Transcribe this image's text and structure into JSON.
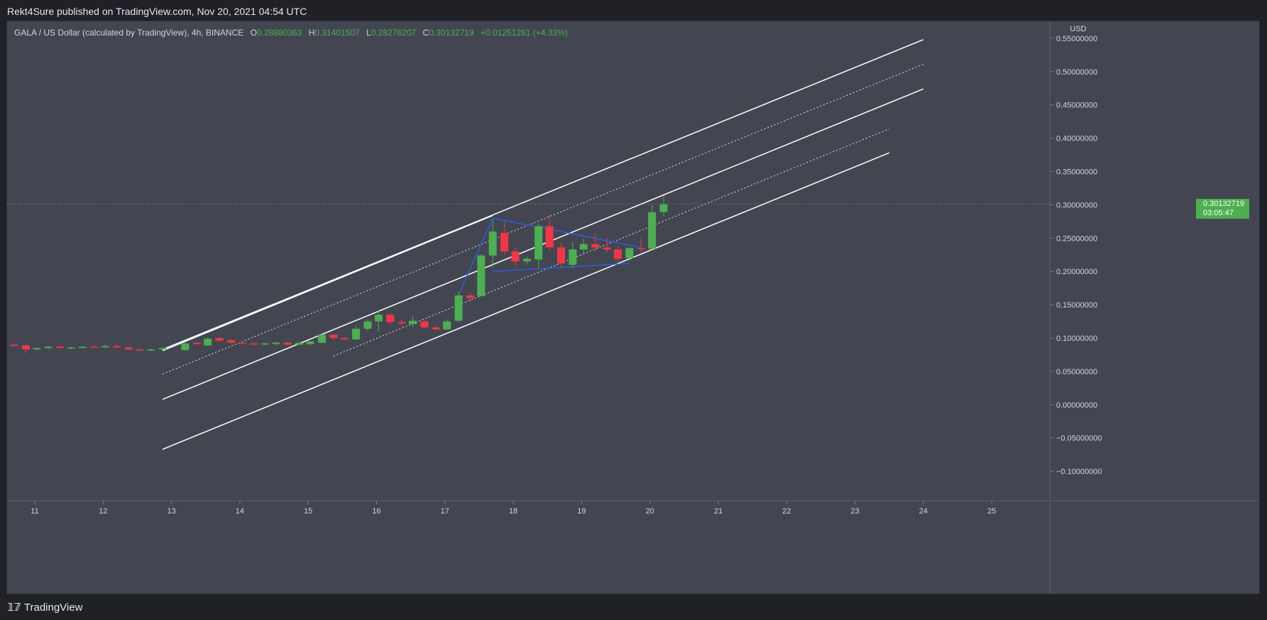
{
  "header": {
    "published": "Rekt4Sure published on TradingView.com, Nov 20, 2021 04:54 UTC"
  },
  "legend": {
    "title": "GALA / US Dollar (calculated by TradingView), 4h, BINANCE",
    "o_label": "O",
    "o_value": "0.28880363",
    "h_label": "H",
    "h_value": "0.31401507",
    "l_label": "L",
    "l_value": "0.28276207",
    "c_label": "C",
    "c_value": "0.30132719",
    "change": "+0.01251261 (+4.33%)"
  },
  "price_tag": {
    "price": "0.30132719",
    "countdown": "03:05:47"
  },
  "footer": {
    "brand": "TradingView"
  },
  "colors": {
    "background": "#434651",
    "up": "#4caf50",
    "down": "#f23645",
    "channel": "#ffffff",
    "triangle": "#2962ff",
    "price_line": "#4caf50"
  },
  "chart_data": {
    "type": "candlestick",
    "symbol": "GALA/USD",
    "interval": "4h",
    "currency_label": "USD",
    "y_ticks": [
      "0.55000000",
      "0.50000000",
      "0.45000000",
      "0.40000000",
      "0.35000000",
      "0.30000000",
      "0.25000000",
      "0.20000000",
      "0.15000000",
      "0.10000000",
      "0.05000000",
      "0.00000000",
      "−0.05000000",
      "−0.10000000"
    ],
    "y_tick_values": [
      0.55,
      0.5,
      0.45,
      0.4,
      0.35,
      0.3,
      0.25,
      0.2,
      0.15,
      0.1,
      0.05,
      0.0,
      -0.05,
      -0.1
    ],
    "x_ticks": [
      "11",
      "12",
      "13",
      "14",
      "15",
      "16",
      "17",
      "18",
      "19",
      "20",
      "21",
      "22",
      "23",
      "24",
      "25"
    ],
    "x_tick_values": [
      11,
      12,
      13,
      14,
      15,
      16,
      17,
      18,
      19,
      20,
      21,
      22,
      23,
      24,
      25
    ],
    "last_price": 0.30132719,
    "candles": [
      {
        "t": 10.7,
        "o": 0.09,
        "h": 0.093,
        "l": 0.087,
        "c": 0.088
      },
      {
        "t": 10.87,
        "o": 0.089,
        "h": 0.091,
        "l": 0.077,
        "c": 0.083
      },
      {
        "t": 11.03,
        "o": 0.083,
        "h": 0.086,
        "l": 0.081,
        "c": 0.085
      },
      {
        "t": 11.2,
        "o": 0.085,
        "h": 0.088,
        "l": 0.083,
        "c": 0.087
      },
      {
        "t": 11.37,
        "o": 0.087,
        "h": 0.089,
        "l": 0.084,
        "c": 0.085
      },
      {
        "t": 11.53,
        "o": 0.085,
        "h": 0.087,
        "l": 0.083,
        "c": 0.086
      },
      {
        "t": 11.7,
        "o": 0.086,
        "h": 0.088,
        "l": 0.084,
        "c": 0.087
      },
      {
        "t": 11.87,
        "o": 0.087,
        "h": 0.089,
        "l": 0.085,
        "c": 0.086
      },
      {
        "t": 12.03,
        "o": 0.086,
        "h": 0.09,
        "l": 0.085,
        "c": 0.088
      },
      {
        "t": 12.2,
        "o": 0.088,
        "h": 0.09,
        "l": 0.085,
        "c": 0.086
      },
      {
        "t": 12.37,
        "o": 0.086,
        "h": 0.087,
        "l": 0.082,
        "c": 0.083
      },
      {
        "t": 12.53,
        "o": 0.083,
        "h": 0.085,
        "l": 0.081,
        "c": 0.082
      },
      {
        "t": 12.7,
        "o": 0.082,
        "h": 0.084,
        "l": 0.08,
        "c": 0.083
      },
      {
        "t": 12.87,
        "o": 0.083,
        "h": 0.087,
        "l": 0.082,
        "c": 0.085
      },
      {
        "t": 13.2,
        "o": 0.082,
        "h": 0.093,
        "l": 0.081,
        "c": 0.092
      },
      {
        "t": 13.37,
        "o": 0.093,
        "h": 0.094,
        "l": 0.09,
        "c": 0.091
      },
      {
        "t": 13.53,
        "o": 0.089,
        "h": 0.101,
        "l": 0.088,
        "c": 0.099
      },
      {
        "t": 13.7,
        "o": 0.1,
        "h": 0.102,
        "l": 0.095,
        "c": 0.096
      },
      {
        "t": 13.87,
        "o": 0.097,
        "h": 0.098,
        "l": 0.091,
        "c": 0.093
      },
      {
        "t": 14.03,
        "o": 0.093,
        "h": 0.095,
        "l": 0.09,
        "c": 0.092
      },
      {
        "t": 14.2,
        "o": 0.092,
        "h": 0.094,
        "l": 0.089,
        "c": 0.091
      },
      {
        "t": 14.37,
        "o": 0.091,
        "h": 0.093,
        "l": 0.089,
        "c": 0.092
      },
      {
        "t": 14.53,
        "o": 0.091,
        "h": 0.094,
        "l": 0.089,
        "c": 0.093
      },
      {
        "t": 14.7,
        "o": 0.093,
        "h": 0.095,
        "l": 0.089,
        "c": 0.09
      },
      {
        "t": 14.87,
        "o": 0.09,
        "h": 0.094,
        "l": 0.089,
        "c": 0.093
      },
      {
        "t": 15.03,
        "o": 0.091,
        "h": 0.096,
        "l": 0.089,
        "c": 0.095
      },
      {
        "t": 15.2,
        "o": 0.093,
        "h": 0.107,
        "l": 0.092,
        "c": 0.105
      },
      {
        "t": 15.37,
        "o": 0.105,
        "h": 0.107,
        "l": 0.097,
        "c": 0.1
      },
      {
        "t": 15.53,
        "o": 0.1,
        "h": 0.102,
        "l": 0.097,
        "c": 0.098
      },
      {
        "t": 15.7,
        "o": 0.098,
        "h": 0.118,
        "l": 0.097,
        "c": 0.114
      },
      {
        "t": 15.87,
        "o": 0.114,
        "h": 0.128,
        "l": 0.11,
        "c": 0.125
      },
      {
        "t": 16.03,
        "o": 0.125,
        "h": 0.142,
        "l": 0.11,
        "c": 0.135
      },
      {
        "t": 16.2,
        "o": 0.135,
        "h": 0.137,
        "l": 0.12,
        "c": 0.124
      },
      {
        "t": 16.37,
        "o": 0.124,
        "h": 0.128,
        "l": 0.117,
        "c": 0.122
      },
      {
        "t": 16.53,
        "o": 0.121,
        "h": 0.133,
        "l": 0.117,
        "c": 0.126
      },
      {
        "t": 16.7,
        "o": 0.125,
        "h": 0.127,
        "l": 0.113,
        "c": 0.116
      },
      {
        "t": 16.87,
        "o": 0.116,
        "h": 0.119,
        "l": 0.112,
        "c": 0.113
      },
      {
        "t": 17.03,
        "o": 0.113,
        "h": 0.128,
        "l": 0.112,
        "c": 0.125
      },
      {
        "t": 17.2,
        "o": 0.126,
        "h": 0.17,
        "l": 0.124,
        "c": 0.164
      },
      {
        "t": 17.37,
        "o": 0.164,
        "h": 0.169,
        "l": 0.154,
        "c": 0.16
      },
      {
        "t": 17.53,
        "o": 0.163,
        "h": 0.226,
        "l": 0.162,
        "c": 0.224
      },
      {
        "t": 17.7,
        "o": 0.224,
        "h": 0.278,
        "l": 0.205,
        "c": 0.26
      },
      {
        "t": 17.87,
        "o": 0.258,
        "h": 0.274,
        "l": 0.225,
        "c": 0.23
      },
      {
        "t": 18.03,
        "o": 0.23,
        "h": 0.236,
        "l": 0.208,
        "c": 0.215
      },
      {
        "t": 18.2,
        "o": 0.215,
        "h": 0.222,
        "l": 0.21,
        "c": 0.219
      },
      {
        "t": 18.37,
        "o": 0.218,
        "h": 0.272,
        "l": 0.205,
        "c": 0.268
      },
      {
        "t": 18.53,
        "o": 0.268,
        "h": 0.284,
        "l": 0.232,
        "c": 0.236
      },
      {
        "t": 18.7,
        "o": 0.236,
        "h": 0.242,
        "l": 0.205,
        "c": 0.212
      },
      {
        "t": 18.87,
        "o": 0.21,
        "h": 0.244,
        "l": 0.205,
        "c": 0.233
      },
      {
        "t": 19.03,
        "o": 0.233,
        "h": 0.249,
        "l": 0.228,
        "c": 0.241
      },
      {
        "t": 19.2,
        "o": 0.241,
        "h": 0.257,
        "l": 0.23,
        "c": 0.236
      },
      {
        "t": 19.37,
        "o": 0.236,
        "h": 0.251,
        "l": 0.229,
        "c": 0.233
      },
      {
        "t": 19.53,
        "o": 0.233,
        "h": 0.238,
        "l": 0.215,
        "c": 0.219
      },
      {
        "t": 19.7,
        "o": 0.22,
        "h": 0.236,
        "l": 0.216,
        "c": 0.235
      },
      {
        "t": 19.87,
        "o": 0.235,
        "h": 0.251,
        "l": 0.229,
        "c": 0.234
      },
      {
        "t": 20.03,
        "o": 0.234,
        "h": 0.3,
        "l": 0.232,
        "c": 0.289
      },
      {
        "t": 20.2,
        "o": 0.289,
        "h": 0.314,
        "l": 0.283,
        "c": 0.301
      }
    ],
    "drawings": {
      "solid_channel_lines": [
        {
          "x1": 12.87,
          "y1": 0.083,
          "x2": 24.0,
          "y2": 0.548
        },
        {
          "x1": 12.87,
          "y1": 0.081,
          "x2": 17.7,
          "y2": 0.284
        },
        {
          "x1": 12.87,
          "y1": 0.008,
          "x2": 24.0,
          "y2": 0.474
        },
        {
          "x1": 12.87,
          "y1": -0.067,
          "x2": 23.5,
          "y2": 0.378
        }
      ],
      "dotted_channel_lines": [
        {
          "x1": 12.87,
          "y1": 0.046,
          "x2": 24.0,
          "y2": 0.511
        },
        {
          "x1": 15.37,
          "y1": 0.073,
          "x2": 23.5,
          "y2": 0.414
        }
      ],
      "triangle_lines": [
        {
          "x1": 17.2,
          "y1": 0.165,
          "x2": 17.7,
          "y2": 0.28
        },
        {
          "x1": 17.7,
          "y1": 0.28,
          "x2": 19.87,
          "y2": 0.236
        },
        {
          "x1": 17.7,
          "y1": 0.2,
          "x2": 19.7,
          "y2": 0.212
        }
      ]
    }
  }
}
